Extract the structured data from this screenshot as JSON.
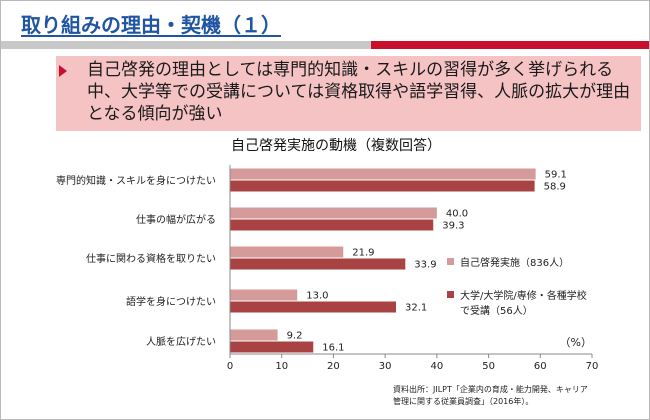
{
  "slide": {
    "title": "取り組みの理由・契機（１）",
    "bullet_text": "自己啓発の理由としては専門的知識・スキルの習得が多く挙げられる中、大学等での受講については資格取得や語学習得、人脈の拡大が理由となる傾向が強い",
    "source": [
      "資料出所：JILPT「企業内の育成・能力開発、キャリア",
      "管理に関する従業員調査」（2016年）。"
    ]
  },
  "colors": {
    "title": "#1f55a3",
    "accent_red": "#c8102e",
    "callout_bg": "#f6c3c5",
    "series1": "#d59a9a",
    "series2": "#a94343"
  },
  "chart_data": {
    "type": "bar",
    "orientation": "horizontal",
    "title": "自己啓発実施の動機（複数回答）",
    "categories": [
      "専門的知識・スキルを身につけたい",
      "仕事の幅が広がる",
      "仕事に関わる資格を取りたい",
      "語学を身につけたい",
      "人脈を広げたい"
    ],
    "series": [
      {
        "name": "自己啓発実施（836人）",
        "values": [
          59.1,
          40.0,
          21.9,
          13.0,
          9.2
        ]
      },
      {
        "name": "大学/大学院/専修・各種学校で受講（56人）",
        "values": [
          58.9,
          39.3,
          33.9,
          32.1,
          16.1
        ]
      }
    ],
    "value_labels": [
      [
        "59.1",
        "40.0",
        "21.9",
        "13.0",
        "9.2"
      ],
      [
        "58.9",
        "39.3",
        "33.9",
        "32.1",
        "16.1"
      ]
    ],
    "legend_lines": [
      [
        "自己啓発実施（836人）"
      ],
      [
        "大学/大学院/専修・各種学校",
        "で受講（56人）"
      ]
    ],
    "xlim": [
      0,
      70
    ],
    "xticks": [
      0,
      10,
      20,
      30,
      40,
      50,
      60,
      70
    ],
    "unit_label": "（%）",
    "legend_position": "right",
    "grid": false
  }
}
